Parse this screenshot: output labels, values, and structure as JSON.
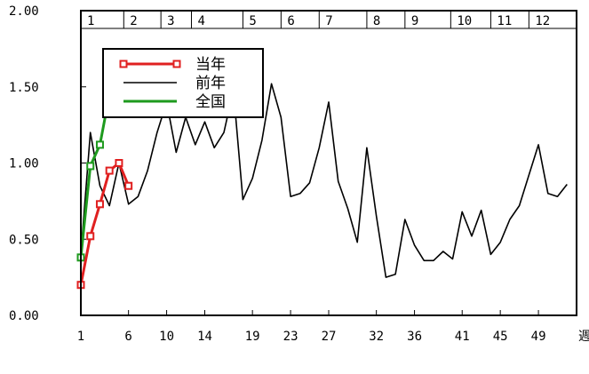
{
  "chart_data": {
    "type": "line",
    "xlabel": "週",
    "ylabel": "",
    "xlim": [
      1,
      53
    ],
    "ylim": [
      0,
      2
    ],
    "grid": false,
    "legend_position": "top-left",
    "y_ticks": [
      "0.00",
      "0.50",
      "1.00",
      "1.50",
      "2.00"
    ],
    "x_ticks": [
      {
        "week": 1,
        "label": "1"
      },
      {
        "week": 6,
        "label": "6"
      },
      {
        "week": 10,
        "label": "10"
      },
      {
        "week": 14,
        "label": "14"
      },
      {
        "week": 19,
        "label": "19"
      },
      {
        "week": 23,
        "label": "23"
      },
      {
        "week": 27,
        "label": "27"
      },
      {
        "week": 32,
        "label": "32"
      },
      {
        "week": 36,
        "label": "36"
      },
      {
        "week": 41,
        "label": "41"
      },
      {
        "week": 45,
        "label": "45"
      },
      {
        "week": 49,
        "label": "49"
      }
    ],
    "months": [
      {
        "label": "1",
        "start_week": 1,
        "end_week": 5.5
      },
      {
        "label": "2",
        "start_week": 5.5,
        "end_week": 9.4
      },
      {
        "label": "3",
        "start_week": 9.4,
        "end_week": 12.6
      },
      {
        "label": "4",
        "start_week": 12.6,
        "end_week": 18
      },
      {
        "label": "5",
        "start_week": 18,
        "end_week": 22
      },
      {
        "label": "6",
        "start_week": 22,
        "end_week": 26
      },
      {
        "label": "7",
        "start_week": 26,
        "end_week": 31
      },
      {
        "label": "8",
        "start_week": 31,
        "end_week": 35
      },
      {
        "label": "9",
        "start_week": 35,
        "end_week": 39.8
      },
      {
        "label": "10",
        "start_week": 39.8,
        "end_week": 44
      },
      {
        "label": "11",
        "start_week": 44,
        "end_week": 48
      },
      {
        "label": "12",
        "start_week": 48,
        "end_week": 53
      }
    ],
    "series": [
      {
        "name": "当年",
        "color": "#e02020",
        "marker": "square",
        "x": [
          1,
          2,
          3,
          4,
          5,
          6
        ],
        "y": [
          0.2,
          0.52,
          0.73,
          0.95,
          1.0,
          0.85
        ]
      },
      {
        "name": "前年",
        "color": "#000000",
        "marker": "none",
        "x": [
          1,
          2,
          3,
          4,
          5,
          6,
          7,
          8,
          9,
          10,
          11,
          12,
          13,
          14,
          15,
          16,
          17,
          18,
          19,
          20,
          21,
          22,
          23,
          24,
          25,
          26,
          27,
          28,
          29,
          30,
          31,
          32,
          33,
          34,
          35,
          36,
          37,
          38,
          39,
          40,
          41,
          42,
          43,
          44,
          45,
          46,
          47,
          48,
          49,
          50,
          51,
          52
        ],
        "y": [
          0.4,
          1.2,
          0.85,
          0.72,
          1.0,
          0.73,
          0.78,
          0.95,
          1.2,
          1.4,
          1.07,
          1.3,
          1.12,
          1.27,
          1.1,
          1.2,
          1.48,
          0.76,
          0.9,
          1.15,
          1.52,
          1.3,
          0.78,
          0.8,
          0.87,
          1.1,
          1.4,
          0.88,
          0.7,
          0.48,
          1.1,
          0.65,
          0.25,
          0.27,
          0.63,
          0.46,
          0.36,
          0.36,
          0.42,
          0.37,
          0.68,
          0.52,
          0.69,
          0.4,
          0.48,
          0.63,
          0.72,
          0.92,
          1.12,
          0.8,
          0.78,
          0.86
        ]
      },
      {
        "name": "全国",
        "color": "#1e9a1e",
        "marker": "square",
        "x": [
          1,
          2,
          3,
          4
        ],
        "y": [
          0.38,
          0.98,
          1.12,
          1.45
        ]
      }
    ]
  }
}
